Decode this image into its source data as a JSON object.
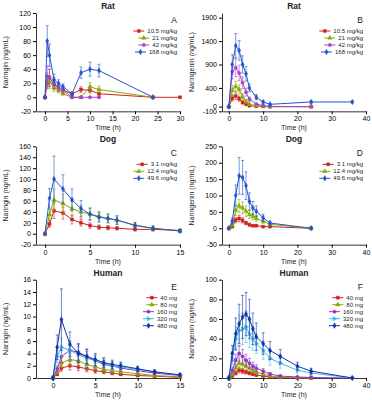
{
  "chart_data": [
    {
      "type": "line",
      "title": "Rat",
      "xlabel": "Time (h)",
      "ylabel": "Naringin (ng/mL)",
      "annotations": [
        "A"
      ],
      "x": [
        0,
        0.5,
        1,
        2,
        3,
        4,
        6,
        8,
        10,
        12,
        24,
        30
      ],
      "xlim": [
        -2,
        30
      ],
      "ylim": [
        -20,
        120
      ],
      "xticks": [
        0,
        5,
        10,
        15,
        20,
        25,
        30
      ],
      "yticks": [
        -20,
        0,
        20,
        40,
        60,
        80,
        100,
        120
      ],
      "legend": "upper right",
      "series": [
        {
          "name": "10.5 mg/kg",
          "color": "#cc2222",
          "marker": "square",
          "values": [
            0,
            20,
            28,
            18,
            13,
            10,
            5,
            11,
            10,
            5,
            0,
            0
          ],
          "errors": [
            0,
            8,
            12,
            7,
            5,
            4,
            2,
            4,
            4,
            2,
            0,
            0
          ]
        },
        {
          "name": "21 mg/kg",
          "color": "#88aa00",
          "marker": "triangle",
          "values": [
            0,
            25,
            22,
            14,
            10,
            5,
            0,
            0,
            15,
            11,
            0,
            null
          ],
          "errors": [
            0,
            10,
            9,
            6,
            4,
            2,
            1,
            1,
            6,
            5,
            0,
            null
          ]
        },
        {
          "name": "42 mg/kg",
          "color": "#aa44cc",
          "marker": "circle",
          "values": [
            0,
            30,
            28,
            20,
            15,
            10,
            0,
            0,
            0,
            0,
            null,
            null
          ],
          "errors": [
            0,
            15,
            12,
            8,
            6,
            4,
            1,
            1,
            1,
            1,
            null,
            null
          ]
        },
        {
          "name": "168 mg/kg",
          "color": "#2255cc",
          "marker": "diamond",
          "values": [
            0,
            80,
            60,
            25,
            20,
            15,
            5,
            35,
            40,
            38,
            0,
            null
          ],
          "errors": [
            0,
            22,
            16,
            8,
            5,
            4,
            2,
            8,
            10,
            9,
            1,
            null
          ]
        }
      ]
    },
    {
      "type": "line",
      "title": "Rat",
      "xlabel": "Time (h)",
      "ylabel": "Naringenin (ng/mL)",
      "annotations": [
        "B"
      ],
      "x": [
        0,
        1,
        2,
        3,
        4,
        5,
        6,
        8,
        10,
        12,
        24,
        36
      ],
      "xlim": [
        -2,
        40
      ],
      "ylim": [
        -100,
        2000
      ],
      "xticks": [
        0,
        10,
        20,
        30,
        40
      ],
      "yticks": [
        -100,
        0,
        400,
        900,
        1400,
        1900
      ],
      "legend": "upper right",
      "series": [
        {
          "name": "10.5 mg/kg",
          "color": "#cc2222",
          "marker": "square",
          "values": [
            0,
            180,
            230,
            170,
            90,
            50,
            20,
            10,
            5,
            0,
            0,
            null
          ],
          "errors": [
            0,
            60,
            80,
            55,
            35,
            22,
            10,
            4,
            2,
            0,
            0,
            null
          ]
        },
        {
          "name": "21 mg/kg",
          "color": "#88aa00",
          "marker": "triangle",
          "values": [
            0,
            350,
            430,
            370,
            210,
            110,
            50,
            20,
            5,
            0,
            0,
            null
          ],
          "errors": [
            0,
            100,
            110,
            95,
            65,
            38,
            22,
            9,
            3,
            0,
            0,
            null
          ]
        },
        {
          "name": "42 mg/kg",
          "color": "#aa44cc",
          "marker": "circle",
          "values": [
            0,
            750,
            830,
            720,
            510,
            310,
            160,
            55,
            22,
            5,
            0,
            null
          ],
          "errors": [
            0,
            160,
            190,
            165,
            125,
            85,
            45,
            18,
            9,
            2,
            0,
            null
          ]
        },
        {
          "name": "168 mg/kg",
          "color": "#2255cc",
          "marker": "diamond",
          "values": [
            0,
            900,
            1300,
            1200,
            900,
            700,
            400,
            200,
            100,
            50,
            100,
            100
          ],
          "errors": [
            0,
            210,
            260,
            210,
            185,
            155,
            85,
            55,
            32,
            18,
            32,
            22
          ]
        }
      ]
    },
    {
      "type": "line",
      "title": "Dog",
      "xlabel": "Time (h)",
      "ylabel": "Naringin (ng/mL)",
      "annotations": [
        "C"
      ],
      "x": [
        0,
        0.5,
        1,
        2,
        3,
        4,
        5,
        6,
        7,
        8,
        10,
        12,
        15
      ],
      "xlim": [
        -1,
        15
      ],
      "ylim": [
        -20,
        160
      ],
      "xticks": [
        0,
        5,
        10,
        15
      ],
      "yticks": [
        -20,
        0,
        20,
        40,
        60,
        80,
        100,
        120,
        140,
        160
      ],
      "legend": "upper right",
      "series": [
        {
          "name": "3.1 mg/kg",
          "color": "#cc2222",
          "marker": "square",
          "values": [
            0,
            18,
            42,
            38,
            26,
            20,
            15,
            12,
            11,
            10,
            8,
            8,
            6
          ],
          "errors": [
            0,
            6,
            14,
            11,
            8,
            6,
            5,
            4,
            4,
            3,
            3,
            3,
            2
          ]
        },
        {
          "name": "12.4 mg/kg",
          "color": "#88aa00",
          "marker": "triangle",
          "values": [
            0,
            35,
            62,
            55,
            46,
            40,
            36,
            32,
            28,
            25,
            16,
            10,
            5
          ],
          "errors": [
            0,
            10,
            20,
            17,
            14,
            12,
            11,
            9,
            8,
            7,
            5,
            4,
            2
          ]
        },
        {
          "name": "49.6 mg/kg",
          "color": "#2255cc",
          "marker": "diamond",
          "values": [
            0,
            65,
            100,
            82,
            62,
            46,
            36,
            30,
            28,
            25,
            15,
            10,
            5
          ],
          "errors": [
            0,
            18,
            42,
            26,
            20,
            15,
            11,
            9,
            8,
            8,
            5,
            4,
            2
          ]
        }
      ]
    },
    {
      "type": "line",
      "title": "Dog",
      "xlabel": "Time (h)",
      "ylabel": "Naringenin (ng/mL)",
      "annotations": [
        "D"
      ],
      "x": [
        0,
        1,
        2,
        3,
        4,
        5,
        6,
        7,
        8,
        10,
        12,
        24,
        36
      ],
      "xlim": [
        -2,
        40
      ],
      "ylim": [
        -50,
        250
      ],
      "xticks": [
        0,
        10,
        20,
        30,
        40
      ],
      "yticks": [
        -50,
        0,
        50,
        100,
        150,
        200,
        250
      ],
      "legend": "upper right",
      "series": [
        {
          "name": "3.1 mg/kg",
          "color": "#cc2222",
          "marker": "square",
          "values": [
            0,
            5,
            25,
            30,
            24,
            16,
            11,
            8,
            8,
            5,
            5,
            0,
            null
          ],
          "errors": [
            0,
            2,
            8,
            10,
            8,
            5,
            4,
            3,
            3,
            2,
            2,
            0,
            null
          ]
        },
        {
          "name": "12.4 mg/kg",
          "color": "#88aa00",
          "marker": "triangle",
          "values": [
            0,
            10,
            55,
            68,
            62,
            52,
            42,
            36,
            30,
            22,
            12,
            0,
            null
          ],
          "errors": [
            0,
            4,
            16,
            20,
            18,
            16,
            12,
            10,
            9,
            7,
            4,
            0,
            null
          ]
        },
        {
          "name": "49.6 mg/kg",
          "color": "#2255cc",
          "marker": "diamond",
          "values": [
            0,
            22,
            100,
            160,
            155,
            130,
            82,
            62,
            52,
            32,
            16,
            0,
            null
          ],
          "errors": [
            0,
            9,
            32,
            56,
            52,
            42,
            26,
            20,
            16,
            11,
            6,
            0,
            null
          ]
        }
      ]
    },
    {
      "type": "line",
      "title": "Human",
      "xlabel": "Time (h)",
      "ylabel": "Naringin (ng/mL)",
      "annotations": [
        "E"
      ],
      "x": [
        0,
        0.5,
        1,
        2,
        3,
        4,
        5,
        6,
        7,
        8,
        10,
        12,
        15
      ],
      "xlim": [
        -2,
        15
      ],
      "ylim": [
        0,
        16
      ],
      "xticks": [
        0,
        5,
        10,
        15
      ],
      "yticks": [
        0,
        2,
        4,
        6,
        8,
        10,
        12,
        14,
        16
      ],
      "legend": "upper right",
      "series": [
        {
          "name": "40 mg",
          "color": "#cc2222",
          "marker": "square",
          "values": [
            0,
            0.6,
            1.6,
            2.0,
            1.8,
            1.5,
            1.2,
            1.0,
            0.8,
            0.6,
            0.4,
            0.3,
            0.1
          ],
          "errors": [
            0,
            0.2,
            0.5,
            0.7,
            0.6,
            0.5,
            0.4,
            0.3,
            0.3,
            0.2,
            0.1,
            0.1,
            0.05
          ]
        },
        {
          "name": "80 mg",
          "color": "#88aa00",
          "marker": "triangle",
          "values": [
            0,
            1.0,
            2.5,
            3.0,
            2.8,
            2.2,
            1.8,
            1.4,
            1.2,
            1.0,
            0.7,
            0.4,
            0.2
          ],
          "errors": [
            0,
            0.3,
            0.8,
            1.0,
            0.9,
            0.7,
            0.6,
            0.5,
            0.4,
            0.3,
            0.2,
            0.1,
            0.1
          ]
        },
        {
          "name": "160 mg",
          "color": "#9933cc",
          "marker": "circle",
          "values": [
            0,
            1.5,
            3.5,
            4.5,
            4.2,
            3.5,
            2.8,
            2.2,
            2.0,
            1.6,
            1.2,
            0.8,
            0.4
          ],
          "errors": [
            0,
            0.5,
            1.0,
            1.5,
            1.4,
            1.2,
            0.9,
            0.7,
            0.6,
            0.5,
            0.4,
            0.3,
            0.1
          ]
        },
        {
          "name": "320 mg",
          "color": "#44bbdd",
          "marker": "triangle-right",
          "values": [
            0,
            3.5,
            5.0,
            4.5,
            3.8,
            3.2,
            2.8,
            2.4,
            2.0,
            1.8,
            1.4,
            1.0,
            0.5
          ],
          "errors": [
            0,
            1.0,
            1.5,
            1.5,
            1.3,
            1.1,
            0.9,
            0.8,
            0.7,
            0.6,
            0.5,
            0.3,
            0.2
          ]
        },
        {
          "name": "480 mg",
          "color": "#1133aa",
          "marker": "diamond",
          "values": [
            0,
            5.0,
            9.5,
            5.5,
            4.0,
            3.5,
            3.0,
            2.5,
            2.2,
            2.0,
            1.5,
            1.0,
            0.5
          ],
          "errors": [
            0,
            2.0,
            5.0,
            2.0,
            1.5,
            1.2,
            1.0,
            0.8,
            0.7,
            0.6,
            0.4,
            0.3,
            0.2
          ]
        }
      ]
    },
    {
      "type": "line",
      "title": "Human",
      "xlabel": "Time (h)",
      "ylabel": "Naringenin (ng/mL)",
      "annotations": [
        "F"
      ],
      "x": [
        0,
        1,
        2,
        3,
        4,
        5,
        6,
        7,
        8,
        10,
        12,
        15,
        20,
        24,
        36
      ],
      "xlim": [
        -2,
        40
      ],
      "ylim": [
        0,
        100
      ],
      "xticks": [
        0,
        10,
        20,
        30,
        40
      ],
      "yticks": [
        0,
        20,
        40,
        60,
        80,
        100
      ],
      "legend": "upper right",
      "series": [
        {
          "name": "40 mg",
          "color": "#cc2222",
          "marker": "square",
          "values": [
            0,
            2,
            5,
            8,
            7,
            6,
            5,
            4,
            3,
            2,
            1,
            0.5,
            0,
            0,
            null
          ],
          "errors": [
            0,
            1,
            2,
            3,
            2.5,
            2,
            1.8,
            1.5,
            1.2,
            0.8,
            0.4,
            0.2,
            0,
            0,
            null
          ]
        },
        {
          "name": "80 mg",
          "color": "#88aa00",
          "marker": "triangle",
          "values": [
            0,
            4,
            10,
            15,
            14,
            12,
            10,
            8,
            6,
            4,
            2,
            1,
            0.5,
            0,
            null
          ],
          "errors": [
            0,
            2,
            4,
            5,
            4.5,
            4,
            3.5,
            3,
            2.5,
            1.5,
            0.8,
            0.4,
            0.2,
            0,
            null
          ]
        },
        {
          "name": "160 mg",
          "color": "#9933cc",
          "marker": "circle",
          "values": [
            0,
            8,
            18,
            25,
            22,
            18,
            15,
            12,
            10,
            7,
            4,
            2,
            1,
            0.5,
            0
          ],
          "errors": [
            0,
            3,
            6,
            8,
            7,
            6,
            5,
            4,
            3.5,
            2.5,
            1.5,
            0.8,
            0.4,
            0.2,
            0
          ]
        },
        {
          "name": "320 mg",
          "color": "#44bbdd",
          "marker": "triangle-right",
          "values": [
            0,
            20,
            40,
            48,
            50,
            52,
            45,
            40,
            35,
            28,
            20,
            15,
            8,
            5,
            0
          ],
          "errors": [
            0,
            6,
            12,
            16,
            16,
            16,
            14,
            12,
            10,
            9,
            7,
            5,
            3,
            2,
            0
          ]
        },
        {
          "name": "480 mg",
          "color": "#1133aa",
          "marker": "diamond",
          "values": [
            0,
            25,
            45,
            55,
            62,
            65,
            60,
            50,
            42,
            35,
            28,
            22,
            12,
            7,
            0
          ],
          "errors": [
            0,
            8,
            16,
            20,
            22,
            22,
            20,
            16,
            14,
            11,
            9,
            7,
            4,
            3,
            0
          ]
        }
      ]
    }
  ]
}
